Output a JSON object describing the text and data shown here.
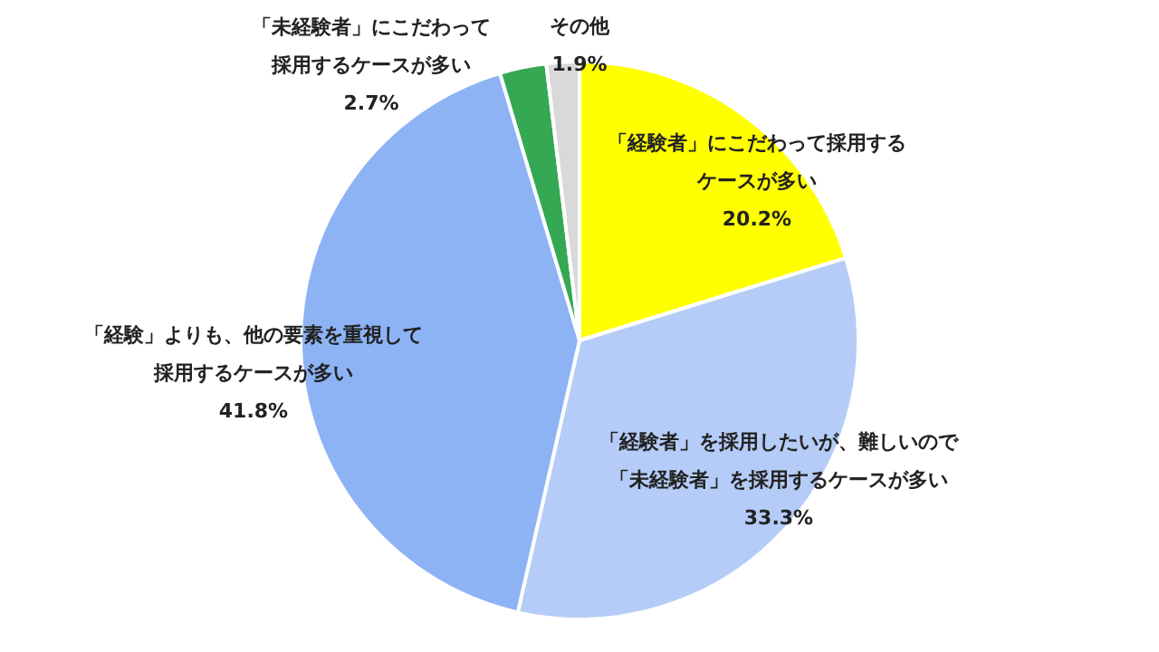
{
  "chart_data": {
    "type": "pie",
    "categories": [
      "「経験者」にこだわって採用するケースが多い",
      "「経験者」を採用したいが、難しいので「未経験者」を採用するケースが多い",
      "「経験」よりも、他の要素を重視して採用するケースが多い",
      "「未経験者」にこだわって採用するケースが多い",
      "その他"
    ],
    "values": [
      20.2,
      33.3,
      41.8,
      2.7,
      1.9
    ],
    "value_labels": [
      "20.2%",
      "33.3%",
      "41.8%",
      "2.7%",
      "1.9%"
    ],
    "colors": [
      "#ffff00",
      "#b4ccf7",
      "#8db3f5",
      "#34a853",
      "#d9d9d9"
    ],
    "legend": false
  }
}
